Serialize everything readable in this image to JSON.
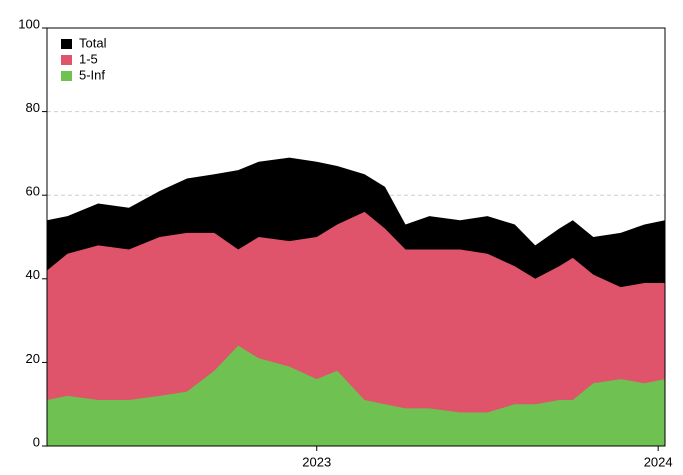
{
  "chart_data": {
    "type": "area",
    "x": [
      2022.21,
      2022.27,
      2022.36,
      2022.45,
      2022.54,
      2022.62,
      2022.7,
      2022.77,
      2022.83,
      2022.92,
      2023.0,
      2023.06,
      2023.14,
      2023.2,
      2023.26,
      2023.33,
      2023.42,
      2023.5,
      2023.58,
      2023.64,
      2023.71,
      2023.75,
      2023.81,
      2023.89,
      2023.96,
      2024.02
    ],
    "series": [
      {
        "name": "Total",
        "color": "#000000",
        "values": [
          54,
          55,
          58,
          57,
          61,
          64,
          65,
          66,
          68,
          69,
          68,
          67,
          65,
          62,
          53,
          55,
          54,
          55,
          53,
          48,
          52,
          54,
          50,
          51,
          53,
          54
        ]
      },
      {
        "name": "1-5",
        "color": "#df536b",
        "values": [
          42,
          46,
          48,
          47,
          50,
          51,
          51,
          47,
          50,
          49,
          50,
          53,
          56,
          52,
          47,
          47,
          47,
          46,
          43,
          40,
          43,
          45,
          41,
          38,
          39,
          39
        ]
      },
      {
        "name": "5-Inf",
        "color": "#6fc152",
        "values": [
          11,
          12,
          11,
          11,
          12,
          13,
          18,
          24,
          21,
          19,
          16,
          18,
          11,
          10,
          9,
          9,
          8,
          8,
          10,
          10,
          11,
          11,
          15,
          16,
          15,
          16
        ]
      }
    ],
    "xlim": [
      2022.21,
      2024.02
    ],
    "xticks": [
      2023,
      2024
    ],
    "ylim": [
      0,
      100
    ],
    "yticks": [
      0,
      20,
      40,
      60,
      80,
      100
    ],
    "grid": true,
    "legend": "top-left"
  }
}
